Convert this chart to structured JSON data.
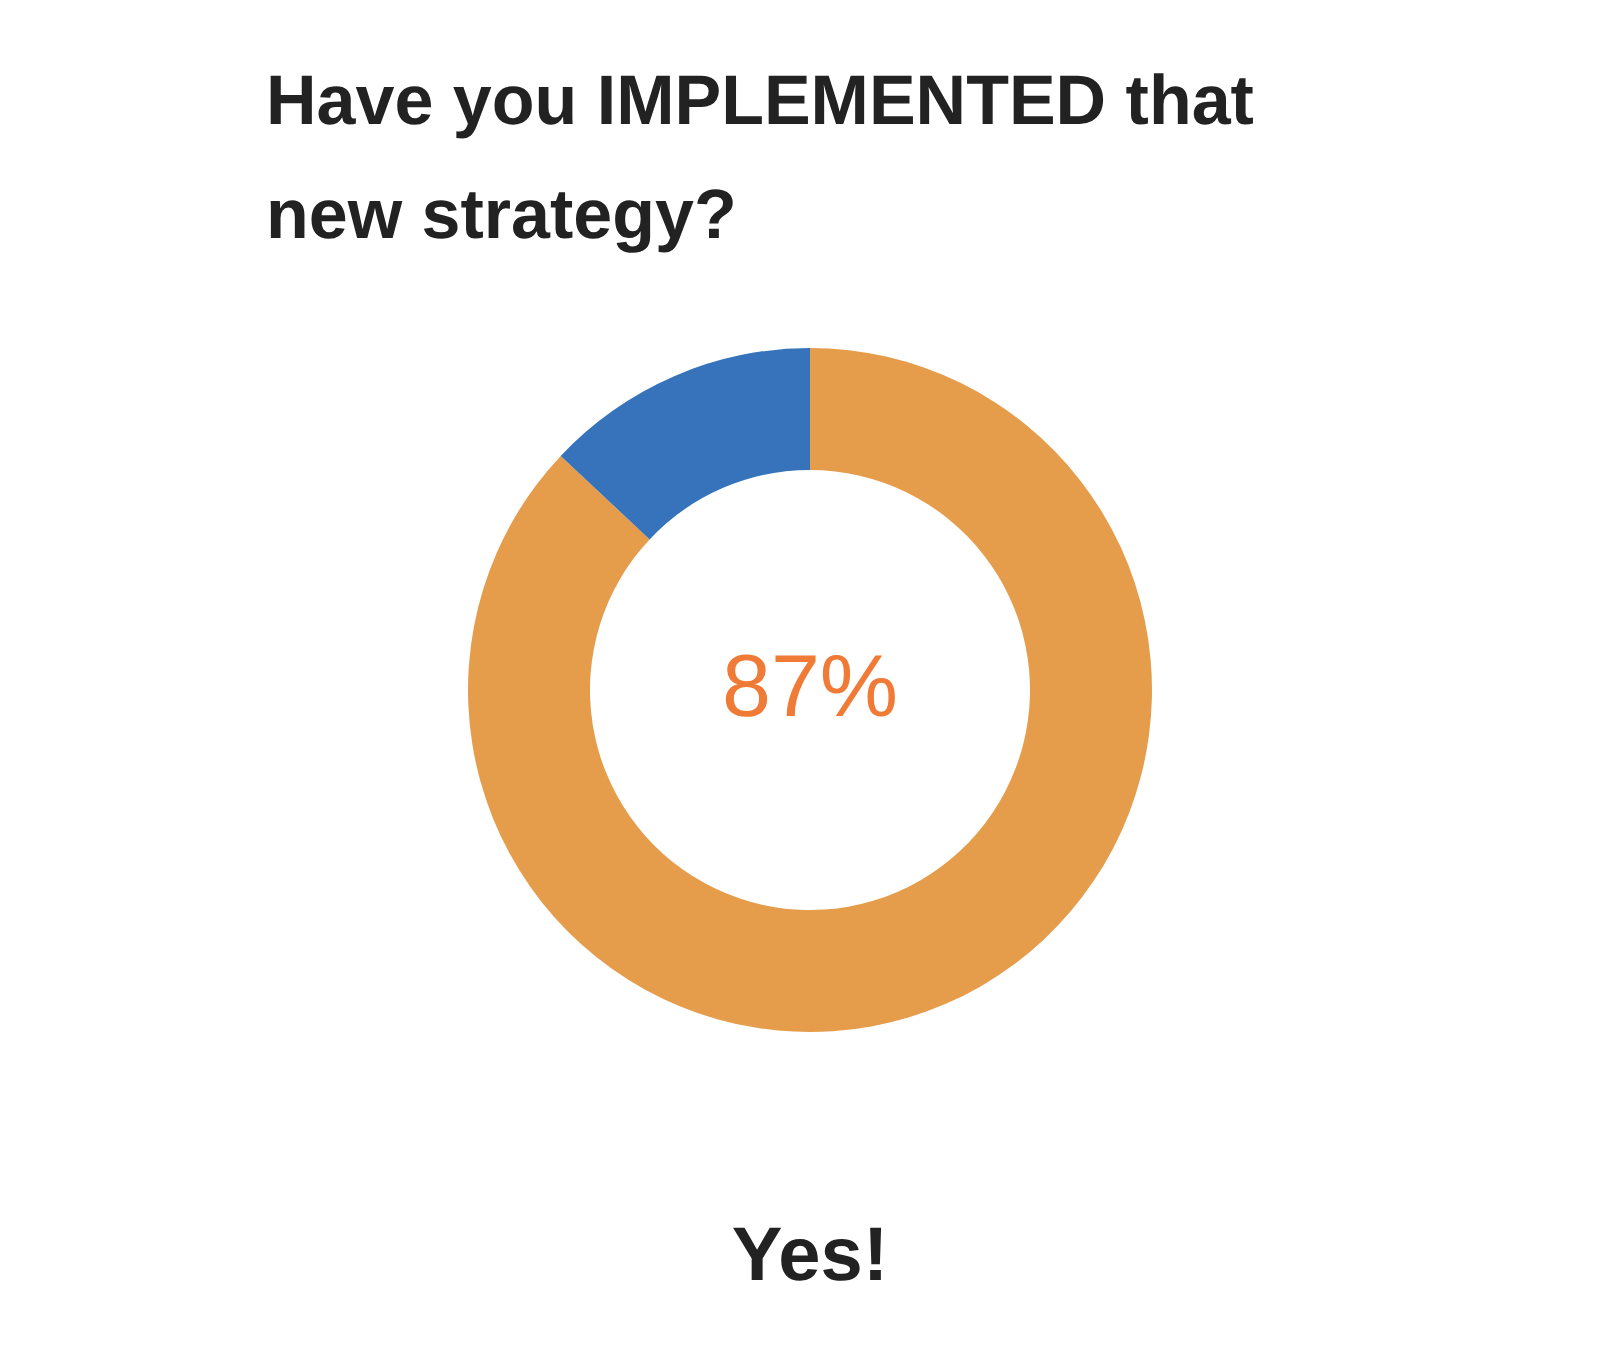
{
  "chart_data": {
    "type": "donut",
    "title": "Have you IMPLEMENTED that new strategy?",
    "categories": [
      null,
      null
    ],
    "values": [
      87,
      13
    ],
    "colors": [
      "#e59d4c",
      "#3673ba"
    ],
    "value_labels": [
      "87%",
      null
    ],
    "annotations": [
      "Yes!"
    ]
  }
}
